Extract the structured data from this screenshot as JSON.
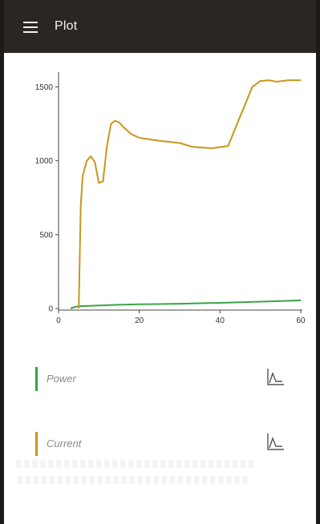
{
  "appbar": {
    "title": "Plot",
    "menu_icon": "hamburger-menu-icon",
    "background": "#292624"
  },
  "chart_data": {
    "type": "line",
    "x_ticks": [
      0,
      20,
      40,
      60
    ],
    "y_ticks": [
      0,
      500,
      1000,
      1500
    ],
    "xlim": [
      0,
      60
    ],
    "ylim": [
      0,
      1600
    ],
    "grid": false,
    "series": [
      {
        "name": "Power",
        "color": "#3aa346",
        "x": [
          3,
          4,
          5,
          10,
          15,
          20,
          25,
          30,
          35,
          40,
          45,
          50,
          55,
          60
        ],
        "y": [
          0,
          10,
          15,
          20,
          25,
          28,
          30,
          32,
          35,
          38,
          42,
          46,
          50,
          55
        ]
      },
      {
        "name": "Current",
        "color": "#c8961a",
        "x": [
          5,
          5.5,
          6,
          7,
          8,
          9,
          10,
          11,
          12,
          13,
          14,
          15,
          16,
          18,
          20,
          25,
          30,
          33,
          35,
          38,
          42,
          45,
          48,
          50,
          52,
          54,
          57,
          60
        ],
        "y": [
          0,
          700,
          900,
          1000,
          1030,
          990,
          850,
          860,
          1100,
          1250,
          1270,
          1260,
          1230,
          1180,
          1155,
          1135,
          1120,
          1095,
          1090,
          1085,
          1100,
          1300,
          1500,
          1540,
          1545,
          1535,
          1545,
          1545
        ]
      }
    ]
  },
  "legend": [
    {
      "label": "Power",
      "color": "#3aa346",
      "icon": "line-chart-icon"
    },
    {
      "label": "Current",
      "color": "#c8961a",
      "icon": "line-chart-icon"
    }
  ]
}
